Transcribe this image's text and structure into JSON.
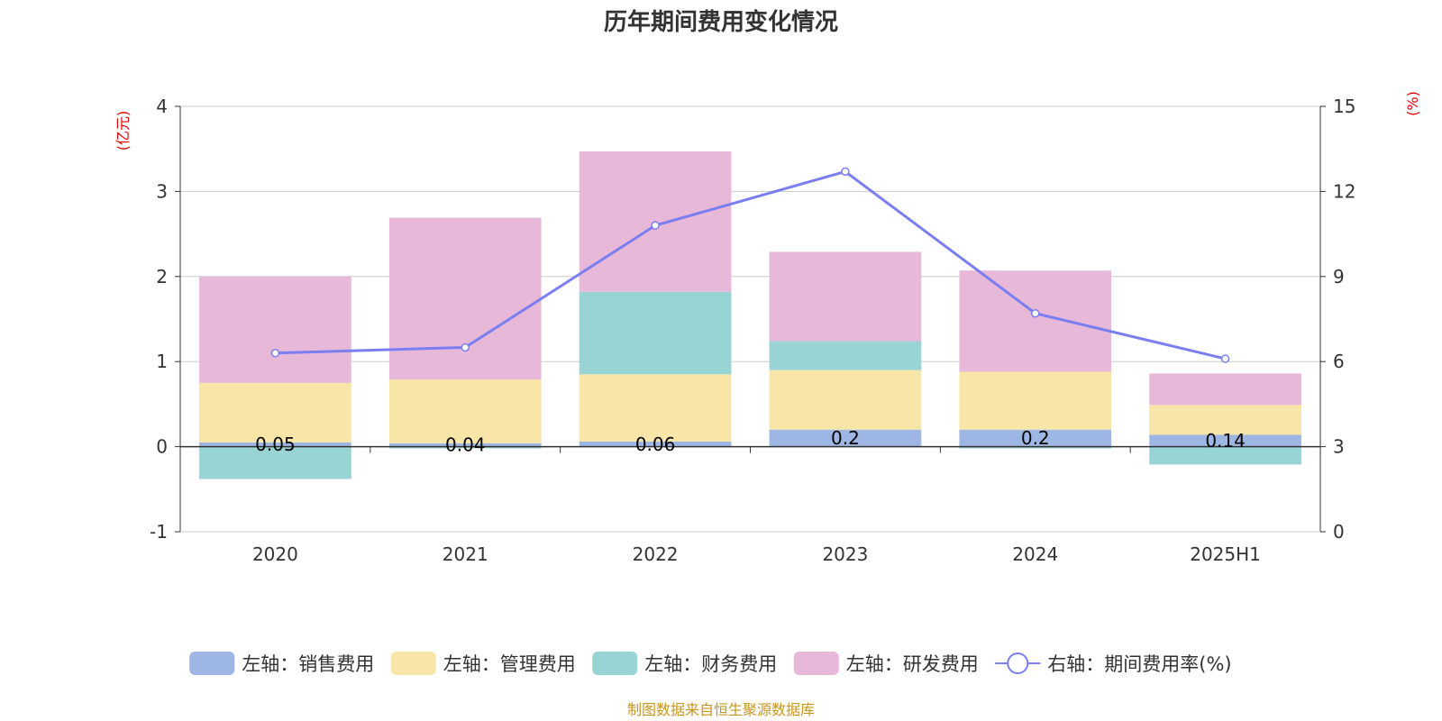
{
  "chart_data": {
    "type": "bar",
    "title": "历年期间费用变化情况",
    "categories": [
      "2020",
      "2021",
      "2022",
      "2023",
      "2024",
      "2025H1"
    ],
    "left_axis": {
      "unit": "(亿元)",
      "ylim": [
        -1,
        4
      ],
      "ticks": [
        "-1",
        "0",
        "1",
        "2",
        "3",
        "4"
      ]
    },
    "right_axis": {
      "unit": "(%)",
      "ylim": [
        0,
        15
      ],
      "ticks": [
        "0",
        "3",
        "6",
        "9",
        "12",
        "15"
      ]
    },
    "grid": true,
    "legend_position": "bottom",
    "series": [
      {
        "name": "左轴：销售费用",
        "axis": "left",
        "type": "bar",
        "color": "#9db6e3",
        "values": [
          0.05,
          0.04,
          0.06,
          0.2,
          0.2,
          0.14
        ],
        "labels": [
          "0.05",
          "0.04",
          "0.06",
          "0.2",
          "0.2",
          "0.14"
        ]
      },
      {
        "name": "左轴：管理费用",
        "axis": "left",
        "type": "bar",
        "color": "#f8e6a8",
        "values": [
          0.7,
          0.75,
          0.79,
          0.7,
          0.68,
          0.35
        ]
      },
      {
        "name": "左轴：财务费用",
        "axis": "left",
        "type": "bar",
        "color": "#98d4d4",
        "values": [
          -0.38,
          -0.02,
          0.97,
          0.34,
          -0.02,
          -0.21
        ]
      },
      {
        "name": "左轴：研发费用",
        "axis": "left",
        "type": "bar",
        "color": "#e8b8d9",
        "values": [
          1.25,
          1.9,
          1.65,
          1.05,
          1.19,
          0.37
        ]
      },
      {
        "name": "右轴：期间费用率(%)",
        "axis": "right",
        "type": "line",
        "color": "#7b7ef0",
        "values": [
          6.3,
          6.5,
          10.8,
          12.7,
          7.7,
          6.1
        ]
      }
    ]
  },
  "source": "制图数据来自恒生聚源数据库"
}
